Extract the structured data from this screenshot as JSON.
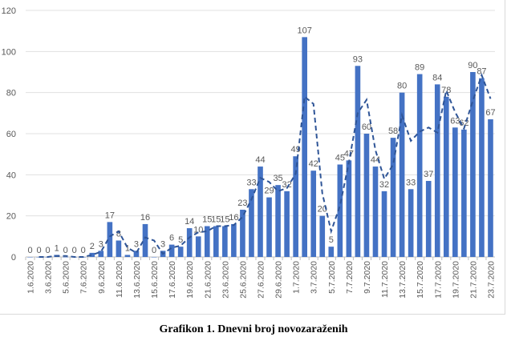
{
  "chart_data": {
    "type": "bar",
    "title": "Grafikon 1. Dnevni broj novozaraženih",
    "xlabel": "",
    "ylabel": "",
    "ylim": [
      0,
      120
    ],
    "yticks": [
      0,
      20,
      40,
      60,
      80,
      100,
      120
    ],
    "grid": true,
    "categories": [
      "1.6.2020",
      "2.6.2020",
      "3.6.2020",
      "4.6.2020",
      "5.6.2020",
      "6.6.2020",
      "7.6.2020",
      "8.6.2020",
      "9.6.2020",
      "10.6.2020",
      "11.6.2020",
      "12.6.2020",
      "13.6.2020",
      "14.6.2020",
      "15.6.2020",
      "16.6.2020",
      "17.6.2020",
      "18.6.2020",
      "19.6.2020",
      "20.6.2020",
      "21.6.2020",
      "22.6.2020",
      "23.6.2020",
      "24.6.2020",
      "25.6.2020",
      "26.6.2020",
      "27.6.2020",
      "28.6.2020",
      "29.6.2020",
      "30.6.2020",
      "1.7.2020",
      "2.7.2020",
      "3.7.2020",
      "4.7.2020",
      "5.7.2020",
      "6.7.2020",
      "7.7.2020",
      "8.7.2020",
      "9.7.2020",
      "10.7.2020",
      "11.7.2020",
      "12.7.2020",
      "13.7.2020",
      "14.7.2020",
      "15.7.2020",
      "16.7.2020",
      "17.7.2020",
      "18.7.2020",
      "19.7.2020",
      "20.7.2020",
      "21.7.2020",
      "22.7.2020",
      "23.7.2020"
    ],
    "values": [
      0,
      0,
      0,
      1,
      0,
      0,
      0,
      2,
      3,
      17,
      8,
      1,
      3,
      16,
      0,
      3,
      6,
      5,
      14,
      10,
      15,
      15,
      15,
      16,
      23,
      33,
      44,
      29,
      35,
      32,
      49,
      107,
      42,
      20,
      5,
      45,
      47,
      93,
      60,
      44,
      32,
      58,
      80,
      33,
      89,
      37,
      84,
      78,
      63,
      62,
      90,
      87,
      67
    ],
    "trendline": {
      "type": "moving-average",
      "period": 2,
      "style": "dashed"
    },
    "colors": {
      "bar": "#4472c4",
      "trend": "#2f5597",
      "grid": "#e0e0e0",
      "text": "#595959"
    }
  }
}
